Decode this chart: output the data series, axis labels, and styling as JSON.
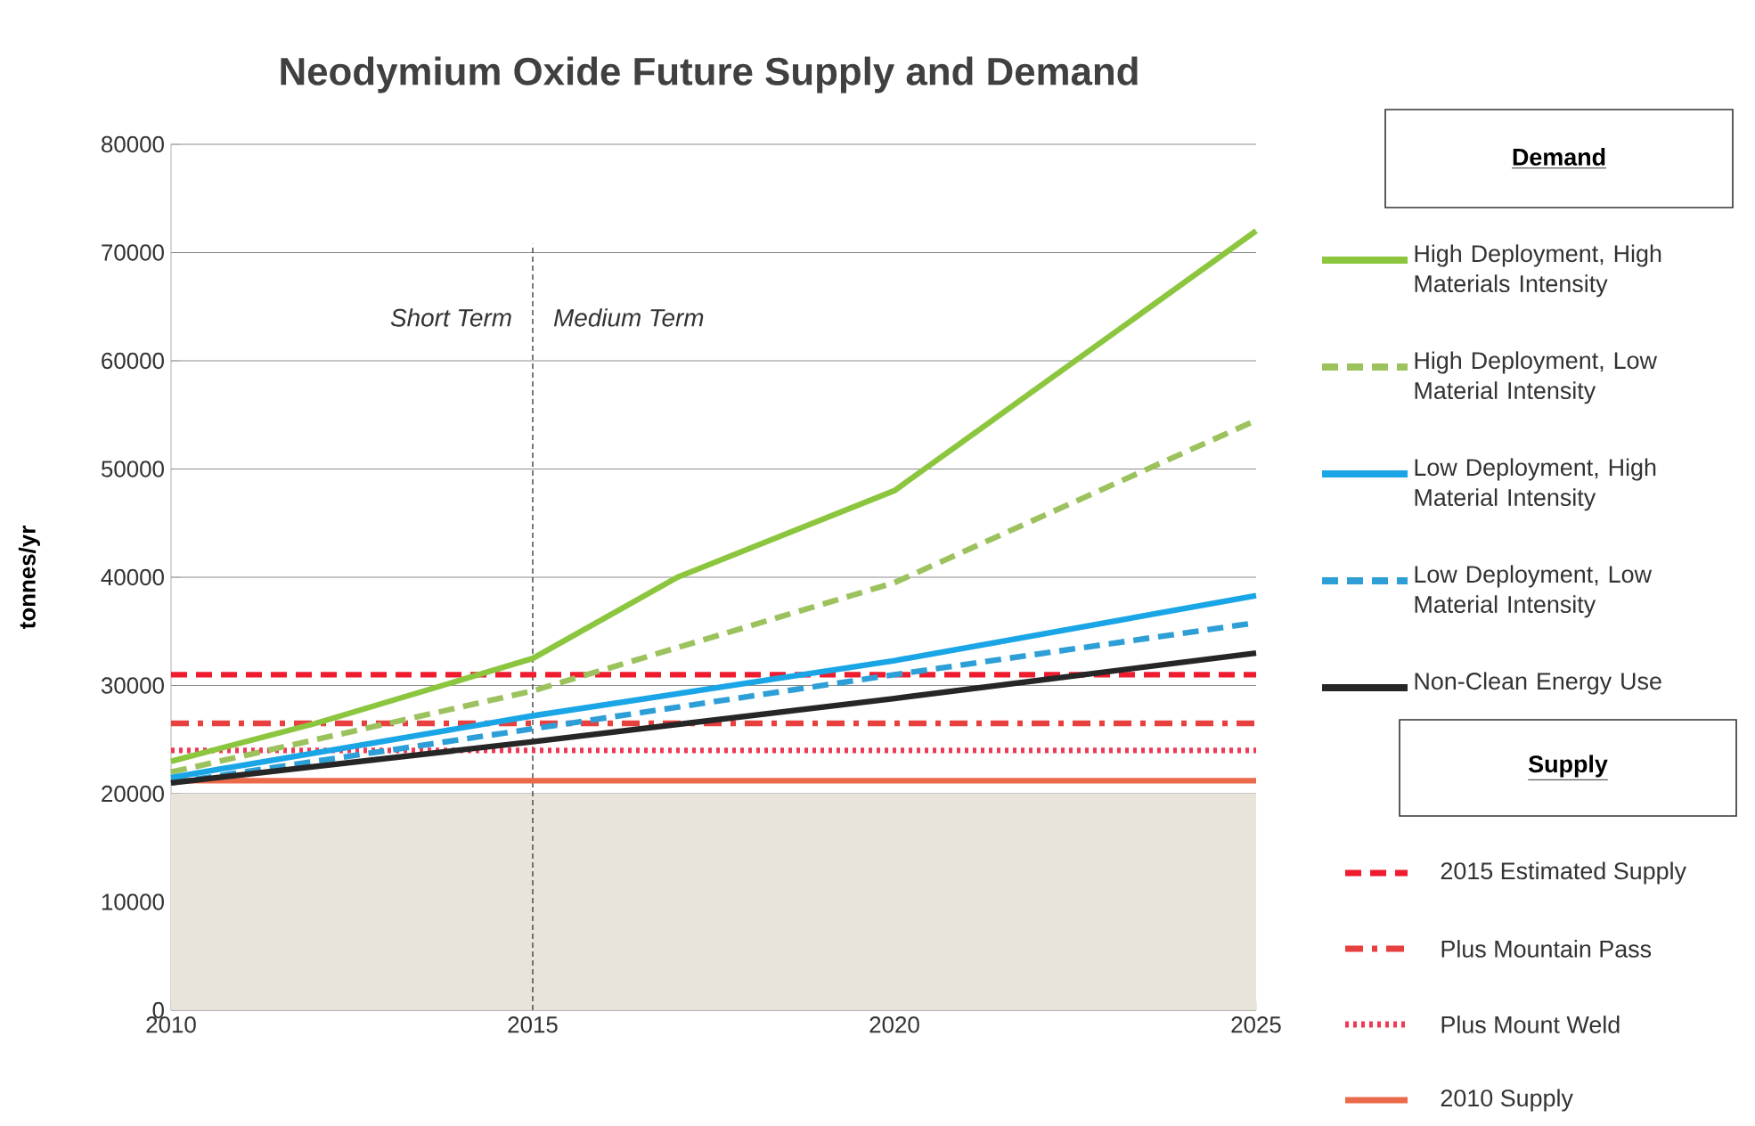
{
  "chart_data": {
    "type": "line",
    "title": "Neodymium Oxide Future Supply and Demand",
    "ylabel": "tonnes/yr",
    "legend_title": "Demand",
    "legend": "right",
    "grid": "y",
    "xlim": [
      2010,
      2025
    ],
    "xticks": [
      2010,
      2015,
      2020,
      2025
    ],
    "ylim": [
      0,
      80000
    ],
    "yticks": [
      0,
      10000,
      20000,
      30000,
      40000,
      50000,
      60000,
      70000,
      80000
    ],
    "series": [
      {
        "name": "High Deployment, High Materials Intensity",
        "color": "#8cc63e",
        "line_style": "solid",
        "x": [
          2010,
          2012,
          2015,
          2017,
          2020,
          2025
        ],
        "values": [
          23000,
          26500,
          32500,
          40000,
          48000,
          72000
        ]
      },
      {
        "name": "High Deployment, Low Material Intensity",
        "color": "#9cc25e",
        "line_style": "dashed",
        "x": [
          2010,
          2015,
          2020,
          2025
        ],
        "values": [
          22000,
          29500,
          39500,
          54500
        ]
      },
      {
        "name": "Low Deployment, High Material Intensity",
        "color": "#1aa6e6",
        "line_style": "solid",
        "x": [
          2010,
          2015,
          2020,
          2025
        ],
        "values": [
          21500,
          27200,
          32300,
          38300
        ]
      },
      {
        "name": "Low Deployment, Low Material Intensity",
        "color": "#2e9fd6",
        "line_style": "dashed",
        "x": [
          2010,
          2015,
          2020,
          2025
        ],
        "values": [
          21000,
          26000,
          31000,
          35800
        ]
      },
      {
        "name": "Non-Clean Energy Use",
        "color": "#262626",
        "line_style": "solid",
        "x": [
          2010,
          2015,
          2020,
          2025
        ],
        "values": [
          21000,
          24800,
          28800,
          33000
        ]
      },
      {
        "name": "2015 Estimated Supply",
        "color": "#ee1c2e",
        "line_style": "dashed",
        "x": [
          2010,
          2025
        ],
        "values": [
          31000,
          31000
        ]
      },
      {
        "name": "Plus Mountain Pass",
        "color": "#e8403f",
        "line_style": "dashdot",
        "x": [
          2010,
          2025
        ],
        "values": [
          26500,
          26500
        ]
      },
      {
        "name": "Plus Mount Weld",
        "color": "#f03a55",
        "line_style": "dotted",
        "x": [
          2010,
          2025
        ],
        "values": [
          24000,
          24000
        ]
      },
      {
        "name": "2010 Supply",
        "color": "#ec6a4c",
        "line_style": "solid",
        "x": [
          2010,
          2025
        ],
        "values": [
          21200,
          21200
        ]
      }
    ],
    "ref_lines": [
      {
        "axis": "x",
        "value": 2015,
        "line_style": "dashed",
        "color": "#404040"
      }
    ],
    "bands": [
      {
        "axis": "y",
        "from": 0,
        "to": 20000,
        "color": "#e9e4d9"
      }
    ],
    "annotations": [
      "Short Term",
      "Medium Term",
      "Supply"
    ]
  }
}
